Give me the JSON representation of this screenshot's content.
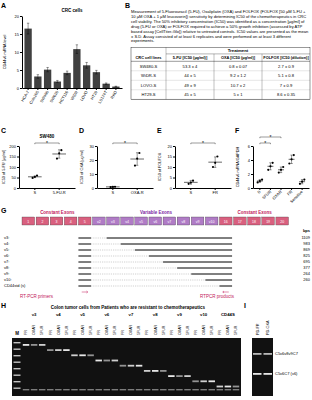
{
  "panel_labels": [
    "A",
    "B",
    "C",
    "D",
    "E",
    "F",
    "G",
    "H",
    "I"
  ],
  "chart_data": [
    {
      "type": "bar",
      "title": "CRC cells",
      "y_label": "CD44v6 mRNA level",
      "categories": [
        "HCA-7",
        "Colo205",
        "SW480",
        "SW620",
        "HCT116",
        "WiDR",
        "LOVO",
        "HT29",
        "LS174T",
        "RKO"
      ],
      "values": [
        16.5,
        3.2,
        5.1,
        1.8,
        4.2,
        10.8,
        6.3,
        4.4,
        1.2,
        0.4
      ],
      "errors": [
        1.5,
        0.5,
        0.6,
        0.3,
        0.5,
        1.2,
        0.8,
        0.5,
        0.2,
        0.1
      ],
      "color": "#404040",
      "ylim": [
        0,
        20
      ],
      "yticks": [
        0,
        5,
        10,
        15,
        20
      ]
    },
    {
      "type": "dot",
      "title": "SW480",
      "y_label": "IC50 of 5-FU [µg/ml]",
      "categories": [
        "S",
        "5-FU-R"
      ],
      "values": [
        53.3,
        162
      ],
      "errors": [
        4,
        20
      ],
      "points": [
        [
          48,
          53,
          59
        ],
        [
          140,
          165,
          180
        ]
      ],
      "annotations": [
        "*"
      ],
      "color": "#000000",
      "ylim": [
        0,
        200
      ],
      "yticks": [
        0,
        50,
        100,
        150,
        200
      ]
    },
    {
      "type": "dot",
      "y_label": "IC50 of OXA [µg/ml]",
      "categories": [
        "S",
        "OXA-R"
      ],
      "values": [
        0.8,
        20.7
      ],
      "errors": [
        0.07,
        4.5
      ],
      "points": [
        [
          0.7,
          0.8,
          0.9
        ],
        [
          16,
          21,
          25
        ]
      ],
      "annotations": [
        "*"
      ],
      "color": "#000000",
      "ylim": [
        0,
        30
      ],
      "yticks": [
        0,
        10,
        20,
        30
      ]
    },
    {
      "type": "dot",
      "y_label": "IC50 of FOLFOX",
      "categories": [
        "S",
        "FR"
      ],
      "values": [
        2.7,
        12.3
      ],
      "errors": [
        0.9,
        2.5
      ],
      "points": [
        [
          2,
          2.6,
          3.5
        ],
        [
          10,
          12,
          15
        ]
      ],
      "annotations": [
        "*"
      ],
      "color": "#000000",
      "ylim": [
        0,
        20
      ],
      "yticks": [
        0,
        5,
        10,
        15,
        20
      ]
    },
    {
      "type": "dot",
      "y_label": "CD44v6 mRNA/GAPDH",
      "categories": [
        "S",
        "5FUR",
        "OXAR",
        "FR",
        "Sensitive"
      ],
      "values": [
        1,
        3.1,
        2.6,
        4.1,
        0.9
      ],
      "errors": [
        0.2,
        0.5,
        0.4,
        0.6,
        0.3
      ],
      "points": [
        [
          0.8,
          1,
          1.2
        ],
        [
          2.6,
          3.1,
          3.6
        ],
        [
          2.2,
          2.6,
          3
        ],
        [
          3.5,
          4.1,
          4.7
        ],
        [
          0.6,
          0.9,
          1.2
        ]
      ],
      "annotations": [
        "*",
        "*"
      ],
      "color": "#000000",
      "ylim": [
        0,
        6
      ],
      "yticks": [
        0,
        2,
        4,
        6
      ]
    }
  ],
  "table": {
    "title": "Measurement of 5-Fluorouracil (5-FU), Oxaliplatin (OXA) and FOLFOX (FOLFOX [50 µM 5-FU + 10 µM OXA + 1 µM leucovorin]) sensitivity by determining IC50 of the chemotherapeutics in CRC cell viability. The 50% inhibitory concentration (IC50) was identified as a concentration [µg/ml] of drug (5-FU or OXA) or FOLFOX required to achieve a 50% growth inhibition (assessed by ATP based assay [CellTiter-Glo]) relative to untreated controls. IC50 values are presented as the mean ± S.D. Assay consisted of at least 6 replicates and were performed on at least 3 different experiments.",
    "group_header": "Treatment",
    "header": [
      "CRC cell lines",
      "5-FU [IC50 (µg/ml)]",
      "OXA [IC50 (µg/ml)]",
      "FOLFOX [IC50 (dilution)]"
    ],
    "rows": [
      [
        "SW480-S",
        "53.3 ± 4",
        "0.8 ± 0.07",
        "2.7 ± 0.9"
      ],
      [
        "WiDR-S",
        "44 ± 5",
        "9.2 ± 1.2",
        "5.1 ± 0.8"
      ],
      [
        "LOVO-S",
        "49 ± 9",
        "10.7 ± 2",
        "7 ± 0.9"
      ],
      [
        "HT29-S",
        "45 ± 5",
        "5 ± 1",
        "8.6 ± 0.35"
      ]
    ]
  },
  "diagram": {
    "left_label": "Constant Exons",
    "middle_label": "Variable Exons",
    "right_label": "Constant Exons",
    "exons": [
      "1",
      "2",
      "3",
      "4",
      "5",
      "v2",
      "v3",
      "v4",
      "v5",
      "v6",
      "v7",
      "v8",
      "v9",
      "v10",
      "16",
      "17",
      "18",
      "19",
      "20"
    ],
    "variants": [
      "v3:",
      "v4:",
      "v5:",
      "v6:",
      "v7:",
      "v8:",
      "v9:",
      "v10:"
    ],
    "size_header": "bps",
    "sizes": [
      "1109",
      "983",
      "869",
      "825",
      "695",
      "377",
      "264",
      "260"
    ],
    "standard_label": "CD44std (s)",
    "bottom_labels": [
      "RT-PCR primers",
      "RTPCR products"
    ]
  },
  "gel_h": {
    "title": "Colon tumor cells from Patients who are resistant to chemotherapeutics",
    "marker_label": "M",
    "groups": [
      "v3",
      "v4",
      "v5",
      "v6",
      "v7",
      "v8",
      "v9",
      "v10",
      "CD44S"
    ],
    "lanes": [
      "FR",
      "OXAR",
      "5FUR"
    ]
  },
  "gel_i": {
    "lanes": [
      "PD-FR",
      "PD-OXA"
    ],
    "band_labels": [
      "C5v6v8v9C7",
      "C5v6C7 (v6)"
    ]
  }
}
